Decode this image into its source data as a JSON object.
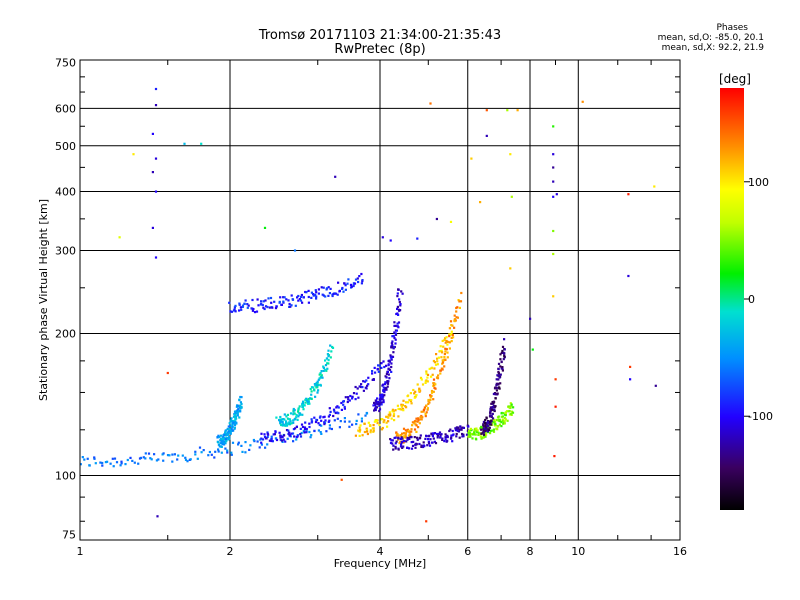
{
  "title_line1": "Tromsø 20171103 21:34:00-21:35:43",
  "title_line2": "RwPretec (8p)",
  "stats": {
    "header": "Phases",
    "line_o": "mean, sd,O: -85.0, 20.1",
    "line_x": "mean, sd,X:  92.2, 21.9"
  },
  "colorbar": {
    "unit_label": "[deg]",
    "ticks": [
      "100",
      "0",
      "-100"
    ],
    "tick_values": [
      100,
      0,
      -100
    ],
    "range": [
      -180,
      180
    ]
  },
  "chart_data": {
    "type": "scatter",
    "xlabel": "Frequency [MHz]",
    "ylabel": "Stationary phase Virtual Height [km]",
    "x_scale": "log",
    "y_scale": "log",
    "xlim": [
      1,
      16
    ],
    "ylim": [
      73,
      760
    ],
    "x_ticks": [
      1,
      2,
      4,
      6,
      8,
      10,
      16
    ],
    "x_tick_labels": [
      "1",
      "2",
      "4",
      "6",
      "8",
      "10",
      "16"
    ],
    "y_ticks": [
      75,
      100,
      200,
      300,
      400,
      500,
      600,
      750
    ],
    "y_tick_labels": [
      "75",
      "100",
      "200",
      "300",
      "400",
      "500",
      "600",
      "750"
    ],
    "grid": true,
    "traces": [
      {
        "f_start": 1.0,
        "f_end": 3.8,
        "h_start": 107,
        "h_end": 135,
        "phase": -60
      },
      {
        "f_start": 2.3,
        "f_end": 4.1,
        "h_start": 120,
        "h_end": 175,
        "phase": -100
      },
      {
        "f_start": 3.9,
        "f_end": 4.4,
        "h_start": 140,
        "h_end": 250,
        "phase": -110
      },
      {
        "f_start": 3.6,
        "f_end": 5.6,
        "h_start": 125,
        "h_end": 205,
        "phase": 110
      },
      {
        "f_start": 4.3,
        "f_end": 5.8,
        "h_start": 120,
        "h_end": 240,
        "phase": 130
      },
      {
        "f_start": 4.2,
        "f_end": 6.0,
        "h_start": 117,
        "h_end": 125,
        "phase": -120
      },
      {
        "f_start": 6.0,
        "f_end": 7.4,
        "h_start": 122,
        "h_end": 140,
        "phase": 50
      },
      {
        "f_start": 6.4,
        "f_end": 7.1,
        "h_start": 125,
        "h_end": 190,
        "phase": -140
      },
      {
        "f_start": 2.0,
        "f_end": 3.7,
        "h_start": 228,
        "h_end": 262,
        "phase": -90
      },
      {
        "f_start": 2.5,
        "f_end": 3.2,
        "h_start": 130,
        "h_end": 185,
        "phase": -20
      },
      {
        "f_start": 1.9,
        "f_end": 2.1,
        "h_start": 118,
        "h_end": 145,
        "phase": -40
      }
    ],
    "points": [
      [
        1.42,
        660,
        -90
      ],
      [
        1.42,
        610,
        -120
      ],
      [
        1.4,
        530,
        -100
      ],
      [
        1.42,
        470,
        -110
      ],
      [
        1.4,
        440,
        -120
      ],
      [
        1.42,
        400,
        -100
      ],
      [
        1.4,
        335,
        -110
      ],
      [
        1.42,
        290,
        -100
      ],
      [
        1.43,
        82,
        -120
      ],
      [
        1.2,
        320,
        80
      ],
      [
        1.28,
        480,
        100
      ],
      [
        1.62,
        505,
        -30
      ],
      [
        1.75,
        505,
        -10
      ],
      [
        2.35,
        335,
        20
      ],
      [
        2.7,
        300,
        -60
      ],
      [
        3.25,
        430,
        -120
      ],
      [
        4.05,
        320,
        -110
      ],
      [
        4.2,
        315,
        -100
      ],
      [
        5.05,
        615,
        140
      ],
      [
        4.95,
        80,
        160
      ],
      [
        6.55,
        595,
        150
      ],
      [
        6.55,
        525,
        -120
      ],
      [
        7.2,
        595,
        60
      ],
      [
        7.3,
        480,
        100
      ],
      [
        7.35,
        390,
        60
      ],
      [
        7.3,
        275,
        110
      ],
      [
        7.55,
        595,
        120
      ],
      [
        8.0,
        215,
        -120
      ],
      [
        8.9,
        550,
        30
      ],
      [
        8.9,
        480,
        -110
      ],
      [
        8.9,
        450,
        -130
      ],
      [
        8.9,
        420,
        -120
      ],
      [
        8.9,
        390,
        -100
      ],
      [
        9.05,
        395,
        -110
      ],
      [
        8.9,
        330,
        50
      ],
      [
        8.9,
        295,
        60
      ],
      [
        8.9,
        240,
        110
      ],
      [
        9.0,
        160,
        160
      ],
      [
        9.0,
        140,
        170
      ],
      [
        8.95,
        110,
        170
      ],
      [
        10.2,
        620,
        130
      ],
      [
        12.6,
        395,
        170
      ],
      [
        12.6,
        265,
        -110
      ],
      [
        12.7,
        170,
        160
      ],
      [
        12.7,
        160,
        -100
      ],
      [
        14.2,
        410,
        100
      ],
      [
        14.3,
        155,
        -130
      ],
      [
        8.1,
        185,
        20
      ],
      [
        3.35,
        98,
        150
      ],
      [
        1.5,
        165,
        160
      ],
      [
        6.1,
        470,
        110
      ],
      [
        6.35,
        380,
        120
      ],
      [
        5.55,
        345,
        90
      ],
      [
        5.2,
        350,
        -130
      ],
      [
        4.75,
        318,
        -90
      ]
    ]
  }
}
